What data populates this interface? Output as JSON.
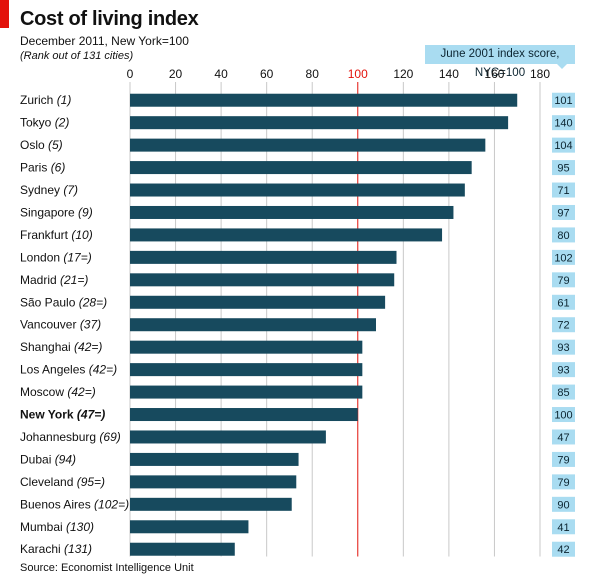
{
  "header": {
    "title": "Cost of living index",
    "subtitle": "December 2011, New York=100",
    "note": "(Rank out of 131 cities)",
    "side_heading": "June 2001 index score, NYC=100",
    "source": "Source: Economist Intelligence Unit"
  },
  "chart_data": {
    "type": "bar",
    "orientation": "horizontal",
    "title": "Cost of living index",
    "subtitle": "December 2011, New York=100",
    "xlim": [
      0,
      180
    ],
    "xticks": [
      0,
      20,
      40,
      60,
      80,
      100,
      120,
      140,
      160,
      180
    ],
    "reference_line": 100,
    "grid": true,
    "bar_color": "#174a5e",
    "reference_color": "#e3120b",
    "side_box_color": "#a9dcf1",
    "highlight": "New York",
    "categories": [
      {
        "city": "Zurich",
        "rank": "(1)",
        "value": 170,
        "index_2001": "101"
      },
      {
        "city": "Tokyo",
        "rank": "(2)",
        "value": 166,
        "index_2001": "140"
      },
      {
        "city": "Oslo",
        "rank": "(5)",
        "value": 156,
        "index_2001": "104"
      },
      {
        "city": "Paris",
        "rank": "(6)",
        "value": 150,
        "index_2001": "95"
      },
      {
        "city": "Sydney",
        "rank": "(7)",
        "value": 147,
        "index_2001": "71"
      },
      {
        "city": "Singapore",
        "rank": "(9)",
        "value": 142,
        "index_2001": "97"
      },
      {
        "city": "Frankfurt",
        "rank": "(10)",
        "value": 137,
        "index_2001": "80"
      },
      {
        "city": "London",
        "rank": "(17=)",
        "value": 117,
        "index_2001": "102"
      },
      {
        "city": "Madrid",
        "rank": "(21=)",
        "value": 116,
        "index_2001": "79"
      },
      {
        "city": "São Paulo",
        "rank": "(28=)",
        "value": 112,
        "index_2001": "61"
      },
      {
        "city": "Vancouver",
        "rank": "(37)",
        "value": 108,
        "index_2001": "72"
      },
      {
        "city": "Shanghai",
        "rank": "(42=)",
        "value": 102,
        "index_2001": "93"
      },
      {
        "city": "Los Angeles",
        "rank": "(42=)",
        "value": 102,
        "index_2001": "93"
      },
      {
        "city": "Moscow",
        "rank": "(42=)",
        "value": 102,
        "index_2001": "85"
      },
      {
        "city": "New York",
        "rank": "(47=)",
        "value": 100,
        "index_2001": "100"
      },
      {
        "city": "Johannesburg",
        "rank": "(69)",
        "value": 86,
        "index_2001": "47"
      },
      {
        "city": "Dubai",
        "rank": "(94)",
        "value": 74,
        "index_2001": "79"
      },
      {
        "city": "Cleveland",
        "rank": "(95=)",
        "value": 73,
        "index_2001": "79"
      },
      {
        "city": "Buenos Aires",
        "rank": "(102=)",
        "value": 71,
        "index_2001": "90"
      },
      {
        "city": "Mumbai",
        "rank": "(130)",
        "value": 52,
        "index_2001": "41"
      },
      {
        "city": "Karachi",
        "rank": "(131)",
        "value": 46,
        "index_2001": "42"
      }
    ]
  }
}
